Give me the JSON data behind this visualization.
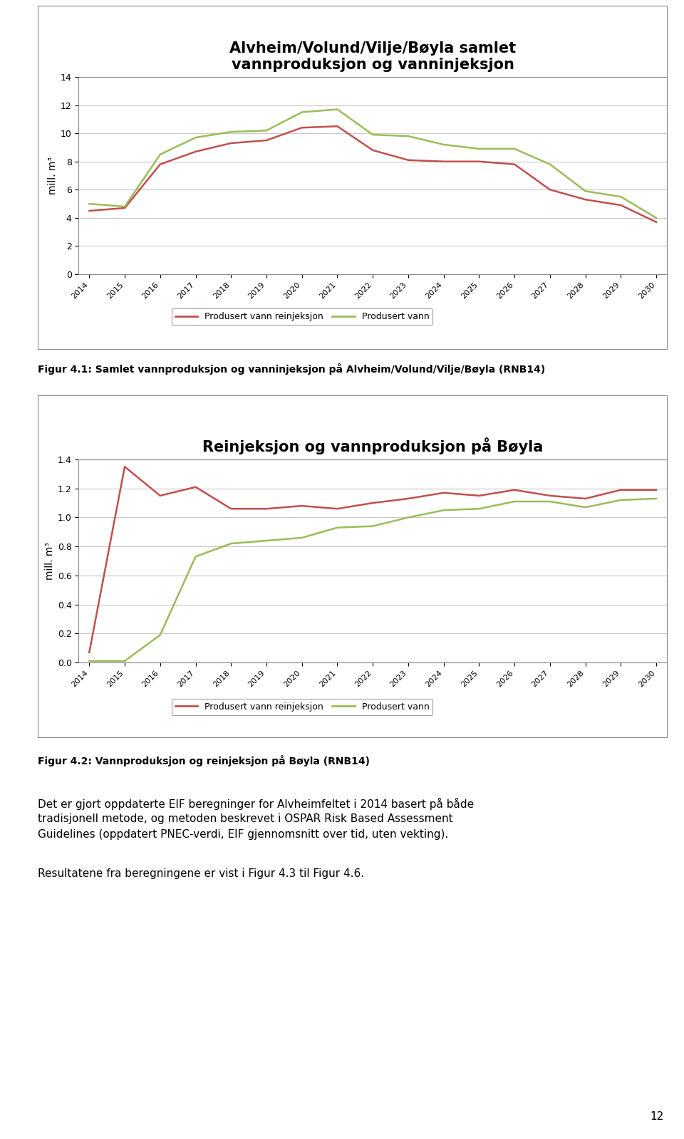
{
  "chart1": {
    "title": "Alvheim/Volund/Vilje/Bøyla samlet\nvannproduksjon og vanninjeksjon",
    "ylabel": "mill. m³",
    "years": [
      2014,
      2015,
      2016,
      2017,
      2018,
      2019,
      2020,
      2021,
      2022,
      2023,
      2024,
      2025,
      2026,
      2027,
      2028,
      2029,
      2030
    ],
    "series1_label": "Produsert vann reinjeksjon",
    "series1_color": "#c0504d",
    "series1_values": [
      4.5,
      4.7,
      7.8,
      8.7,
      9.3,
      9.5,
      10.4,
      10.5,
      8.8,
      8.1,
      8.0,
      8.0,
      7.8,
      6.0,
      5.3,
      4.9,
      3.7
    ],
    "series2_label": "Produsert vann",
    "series2_color": "#9bbb59",
    "series2_values": [
      5.0,
      4.8,
      8.5,
      9.7,
      10.1,
      10.2,
      11.5,
      11.7,
      9.9,
      9.8,
      9.2,
      8.9,
      8.9,
      7.8,
      5.9,
      5.5,
      4.0
    ],
    "ylim": [
      0.0,
      14.0
    ],
    "yticks": [
      0.0,
      2.0,
      4.0,
      6.0,
      8.0,
      10.0,
      12.0,
      14.0
    ]
  },
  "chart2": {
    "title": "Reinjeksjon og vannproduksjon på Bøyla",
    "ylabel": "mill. m³",
    "years": [
      2014,
      2015,
      2016,
      2017,
      2018,
      2019,
      2020,
      2021,
      2022,
      2023,
      2024,
      2025,
      2026,
      2027,
      2028,
      2029,
      2030
    ],
    "series1_label": "Produsert vann reinjeksjon",
    "series1_color": "#c0504d",
    "series1_values": [
      0.07,
      1.35,
      1.15,
      1.21,
      1.06,
      1.06,
      1.08,
      1.06,
      1.1,
      1.13,
      1.17,
      1.15,
      1.19,
      1.15,
      1.13,
      1.19,
      1.19
    ],
    "series2_label": "Produsert vann",
    "series2_color": "#9bbb59",
    "series2_values": [
      0.01,
      0.01,
      0.19,
      0.73,
      0.82,
      0.84,
      0.86,
      0.93,
      0.94,
      1.0,
      1.05,
      1.06,
      1.11,
      1.11,
      1.07,
      1.12,
      1.13
    ],
    "ylim": [
      0.0,
      1.4
    ],
    "yticks": [
      0.0,
      0.2,
      0.4,
      0.6,
      0.8,
      1.0,
      1.2,
      1.4
    ]
  },
  "fig41_caption": "Figur 4.1: Samlet vannproduksjon og vanninjeksjon på Alvheim/Volund/Vilje/Bøyla (RNB14)",
  "fig42_caption": "Figur 4.2: Vannproduksjon og reinjeksjon på Bøyla (RNB14)",
  "body_text": "Det er gjort oppdaterte EIF beregninger for Alvheimfeltet i 2014 basert på både tradisjonell metode, og metoden beskrevet i OSPAR Risk Based Assessment Guidelines (oppdatert PNEC-verdi, EIF gjennomsnitt over tid, uten vekting).",
  "body_text2": "Resultatene fra beregningene er vist i Figur 4.3 til Figur 4.6.",
  "page_number": "12",
  "bg_color": "#ffffff",
  "chart_bg": "#ffffff",
  "grid_color": "#c8c8c8",
  "border_color": "#888888",
  "title_fontsize": 16,
  "caption_fontsize": 10,
  "body_fontsize": 12
}
